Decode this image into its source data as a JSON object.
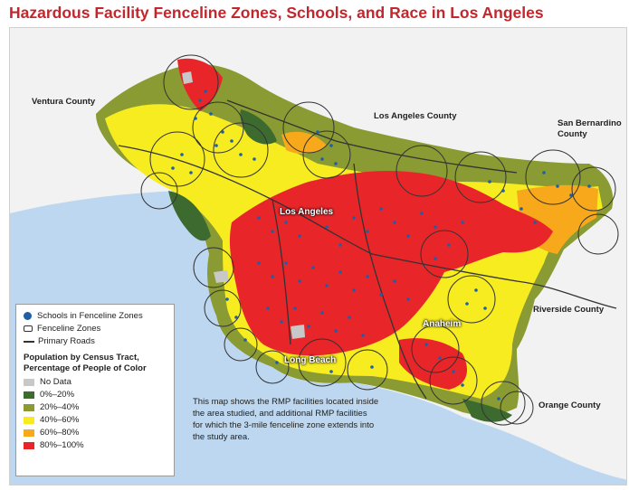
{
  "title": "Hazardous Facility Fenceline Zones, Schools, and Race in Los Angeles",
  "region_labels": {
    "ventura": "Ventura County",
    "la_county": "Los Angeles County",
    "san_bernardino": "San Bernardino\nCounty",
    "riverside": "Riverside County",
    "orange": "Orange County"
  },
  "city_labels": {
    "los_angeles": "Los Angeles",
    "anaheim": "Anaheim",
    "long_beach": "Long Beach"
  },
  "legend": {
    "schools": "Schools in Fenceline Zones",
    "fenceline": "Fenceline Zones",
    "roads": "Primary Roads",
    "heading": "Population by Census Tract, Percentage of People of Color",
    "categories": [
      {
        "label": "No Data",
        "color": "#c8c8c8"
      },
      {
        "label": "0%–20%",
        "color": "#3d6b2f"
      },
      {
        "label": "20%–40%",
        "color": "#8a9b33"
      },
      {
        "label": "40%–60%",
        "color": "#f6ec20"
      },
      {
        "label": "60%–80%",
        "color": "#f7a81b"
      },
      {
        "label": "80%–100%",
        "color": "#e8262a"
      }
    ],
    "school_color": "#1f5fa8"
  },
  "note": "This map shows the RMP facilities located inside the area studied, and additional RMP facilities for which the 3-mile fenceline zone extends into the study area.",
  "colors": {
    "water": "#bcd7ef",
    "land_outside": "#f2f2f2",
    "title": "#c2272d"
  }
}
